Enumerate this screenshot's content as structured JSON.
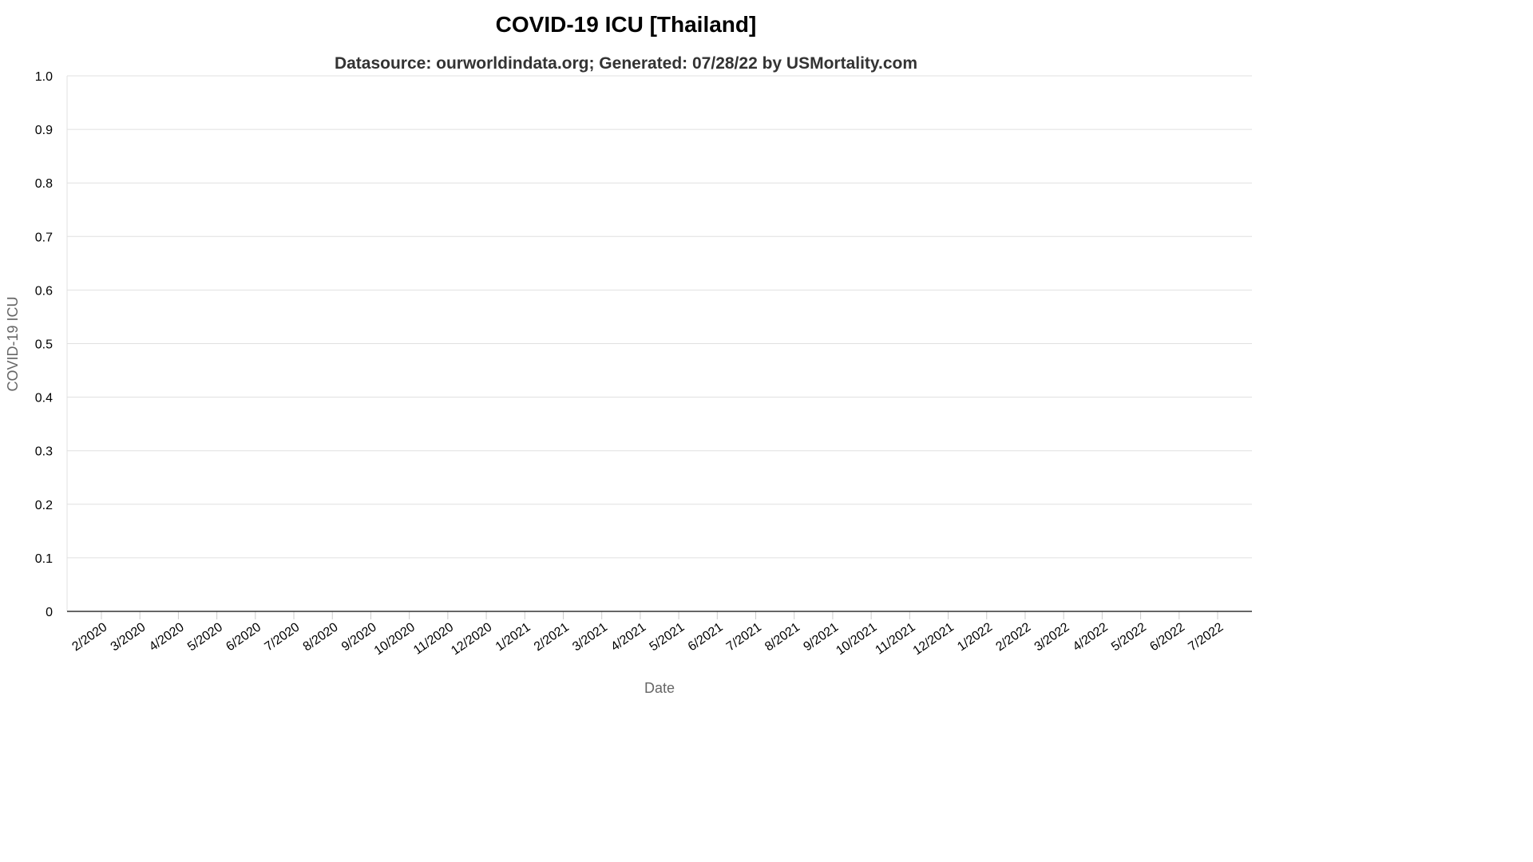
{
  "chart_data": {
    "type": "line",
    "title": "COVID-19 ICU [Thailand]",
    "subtitle": "Datasource: ourworldindata.org; Generated: 07/28/22 by USMortality.com",
    "xlabel": "Date",
    "ylabel": "COVID-19 ICU",
    "ylim": [
      0,
      1.0
    ],
    "y_ticks": [
      "0",
      "0.1",
      "0.2",
      "0.3",
      "0.4",
      "0.5",
      "0.6",
      "0.7",
      "0.8",
      "0.9",
      "1.0"
    ],
    "x_ticks": [
      "2/2020",
      "3/2020",
      "4/2020",
      "5/2020",
      "6/2020",
      "7/2020",
      "8/2020",
      "9/2020",
      "10/2020",
      "11/2020",
      "12/2020",
      "1/2021",
      "2/2021",
      "3/2021",
      "4/2021",
      "5/2021",
      "6/2021",
      "7/2021",
      "8/2021",
      "9/2021",
      "10/2021",
      "11/2021",
      "12/2021",
      "1/2022",
      "2/2022",
      "3/2022",
      "4/2022",
      "5/2022",
      "6/2022",
      "7/2022"
    ],
    "grid": true,
    "legend": "none",
    "series": []
  }
}
